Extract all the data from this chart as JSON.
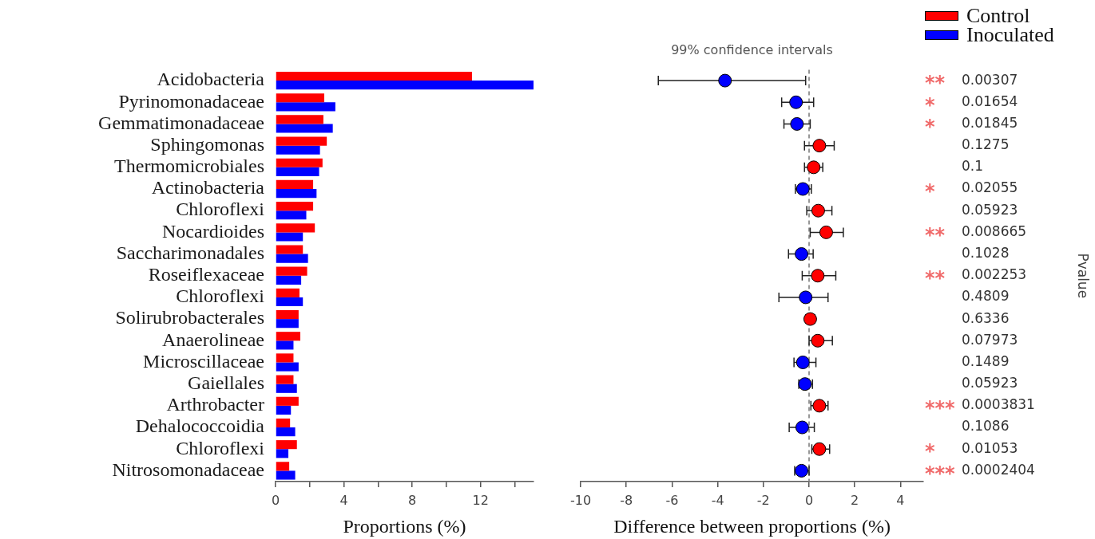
{
  "chart_data": [
    {
      "type": "bar",
      "orientation": "horizontal",
      "categories": [
        "Acidobacteria",
        "Pyrinomonadaceae",
        "Gemmatimonadaceae",
        "Sphingomonas",
        "Thermomicrobiales",
        "Actinobacteria",
        "Chloroflexi",
        "Nocardioides",
        "Saccharimonadales",
        "Roseiflexaceae",
        "Chloroflexi",
        "Solirubrobacterales",
        "Anaerolineae",
        "Microscillaceae",
        "Gaiellales",
        "Arthrobacter",
        "Dehalococcoidia",
        "Chloroflexi",
        "Nitrosomonadaceae"
      ],
      "series": [
        {
          "name": "Control",
          "color": "#ff0000",
          "values": [
            11.5,
            2.85,
            2.8,
            3.0,
            2.75,
            2.2,
            2.2,
            2.3,
            1.6,
            1.85,
            1.4,
            1.35,
            1.45,
            1.05,
            1.05,
            1.35,
            0.85,
            1.25,
            0.8
          ]
        },
        {
          "name": "Inoculated",
          "color": "#0000ff",
          "values": [
            15.1,
            3.5,
            3.35,
            2.6,
            2.55,
            2.4,
            1.8,
            1.6,
            1.9,
            1.5,
            1.6,
            1.35,
            1.05,
            1.35,
            1.25,
            0.9,
            1.15,
            0.75,
            1.15
          ]
        }
      ],
      "xlim": [
        0,
        15.1
      ],
      "xticks": [
        0,
        {
          "value": 2,
          "label": null
        },
        4,
        {
          "value": 6,
          "label": null
        },
        8,
        {
          "value": 10,
          "label": null
        },
        12,
        {
          "value": 14,
          "label": null
        }
      ],
      "xlabel": "Proportions (%)",
      "legend": "top right"
    },
    {
      "type": "scatter",
      "orientation": "horizontal",
      "title": "99% confidence intervals",
      "categories": [
        "0.00307",
        "0.01654",
        "0.01845",
        "0.1275",
        "0.1",
        "0.02055",
        "0.05923",
        "0.008665",
        "0.1028",
        "0.002253",
        "0.4809",
        "0.6336",
        "0.07973",
        "0.1489",
        "0.05923",
        "0.0003831",
        "0.1086",
        "0.01053",
        "0.0002404"
      ],
      "y2_categories": [
        "**",
        "*",
        "*",
        null,
        null,
        "*",
        null,
        "**",
        null,
        "**",
        null,
        null,
        null,
        null,
        null,
        "***",
        null,
        "*",
        "***"
      ],
      "values": [
        -3.68,
        -0.57,
        -0.53,
        0.45,
        0.2,
        -0.27,
        0.4,
        0.75,
        -0.33,
        0.38,
        -0.15,
        0.05,
        0.38,
        -0.27,
        -0.18,
        0.45,
        -0.3,
        0.45,
        -0.33
      ],
      "colors": [
        "#0000ff",
        "#0000ff",
        "#0000ff",
        "#ff0000",
        "#ff0000",
        "#0000ff",
        "#ff0000",
        "#ff0000",
        "#0000ff",
        "#ff0000",
        "#0000ff",
        "#ff0000",
        "#ff0000",
        "#0000ff",
        "#0000ff",
        "#ff0000",
        "#0000ff",
        "#ff0000",
        "#0000ff"
      ],
      "errors": [
        [
          -6.6,
          -0.15
        ],
        [
          -1.2,
          0.2
        ],
        [
          -1.1,
          0.05
        ],
        [
          -0.2,
          1.1
        ],
        [
          -0.2,
          0.6
        ],
        [
          -0.6,
          0.1
        ],
        [
          -0.1,
          1.0
        ],
        [
          0.05,
          1.5
        ],
        [
          -0.9,
          0.18
        ],
        [
          -0.3,
          1.17
        ],
        [
          -1.32,
          0.83
        ],
        [
          -0.15,
          0.25
        ],
        [
          0.0,
          1.02
        ],
        [
          -0.66,
          0.3
        ],
        [
          -0.45,
          0.15
        ],
        [
          0.08,
          0.83
        ],
        [
          -0.87,
          0.23
        ],
        [
          0.12,
          0.9
        ],
        [
          -0.63,
          0.0
        ]
      ],
      "marker": "circle",
      "xlim": [
        -10,
        5
      ],
      "xticks": [
        -10,
        -8,
        -6,
        -4,
        -2,
        0,
        2,
        4
      ],
      "xlabel": "Difference between proportions (%)",
      "ylabel": "Pvalue",
      "ref_lines": [
        {
          "axis": "x",
          "value": 0,
          "line_style": "dashed",
          "color": "#777777"
        }
      ]
    }
  ]
}
